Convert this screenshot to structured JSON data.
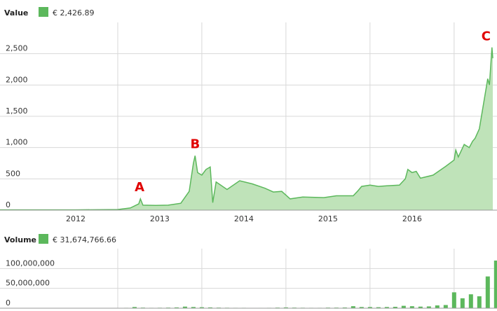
{
  "chart_data": [
    {
      "type": "area",
      "title": "Value",
      "legend_label": "€ 2,426.89",
      "color": "#5cb85c",
      "fill": "#bfe3b9",
      "x": [
        2011.6,
        2012.0,
        2012.5,
        2012.9,
        2013.0,
        2013.15,
        2013.25,
        2013.27,
        2013.3,
        2013.45,
        2013.6,
        2013.75,
        2013.85,
        2013.9,
        2013.92,
        2013.95,
        2014.0,
        2014.05,
        2014.1,
        2014.13,
        2014.17,
        2014.3,
        2014.45,
        2014.6,
        2014.75,
        2014.85,
        2014.95,
        2015.05,
        2015.2,
        2015.45,
        2015.6,
        2015.8,
        2015.85,
        2015.9,
        2016.0,
        2016.1,
        2016.2,
        2016.35,
        2016.42,
        2016.45,
        2016.5,
        2016.55,
        2016.6,
        2016.75,
        2016.9,
        2017.0,
        2017.02,
        2017.05,
        2017.12,
        2017.18,
        2017.22,
        2017.25,
        2017.3,
        2017.35,
        2017.4,
        2017.42,
        2017.45,
        2017.46
      ],
      "values": [
        4,
        5,
        5,
        9,
        10,
        35,
        100,
        180,
        80,
        75,
        80,
        110,
        300,
        750,
        870,
        600,
        560,
        650,
        690,
        120,
        450,
        330,
        470,
        420,
        350,
        290,
        300,
        180,
        210,
        200,
        230,
        230,
        300,
        380,
        400,
        380,
        390,
        400,
        500,
        650,
        600,
        620,
        510,
        560,
        700,
        800,
        960,
        850,
        1050,
        1000,
        1100,
        1150,
        1300,
        1700,
        2100,
        2000,
        2600,
        2426.89
      ],
      "xlim": [
        2011.6,
        2017.51
      ],
      "ylim": [
        0,
        3000
      ],
      "xticks": [
        {
          "value": 2012.5,
          "label": "2012"
        },
        {
          "value": 2013.5,
          "label": "2013"
        },
        {
          "value": 2014.5,
          "label": "2014"
        },
        {
          "value": 2015.5,
          "label": "2015"
        },
        {
          "value": 2016.5,
          "label": "2016"
        }
      ],
      "xgrid": [
        2013,
        2014,
        2015,
        2016,
        2017
      ],
      "yticks": [
        0,
        500,
        {
          "value": 1000,
          "label": "1,000"
        },
        {
          "value": 1500,
          "label": "1,500"
        },
        {
          "value": 2000,
          "label": "2,000"
        },
        {
          "value": 2500,
          "label": "2,500"
        }
      ],
      "annotations": [
        {
          "text": "A",
          "x": 2013.26,
          "y": 190
        },
        {
          "text": "B",
          "x": 2013.92,
          "y": 880
        },
        {
          "text": "C",
          "x": 2017.38,
          "y": 2600
        }
      ],
      "annotation_color": "#e00000"
    },
    {
      "type": "bar",
      "title": "Volume",
      "legend_label": "€ 31,674,766.66",
      "color": "#5cb85c",
      "x": [
        2011.6,
        2011.7,
        2011.8,
        2011.9,
        2012.0,
        2012.1,
        2012.2,
        2012.3,
        2012.4,
        2012.5,
        2012.6,
        2012.7,
        2012.8,
        2012.9,
        2013.0,
        2013.1,
        2013.2,
        2013.3,
        2013.4,
        2013.5,
        2013.6,
        2013.7,
        2013.8,
        2013.9,
        2014.0,
        2014.1,
        2014.2,
        2014.3,
        2014.4,
        2014.5,
        2014.6,
        2014.7,
        2014.8,
        2014.9,
        2015.0,
        2015.1,
        2015.2,
        2015.3,
        2015.4,
        2015.5,
        2015.6,
        2015.7,
        2015.8,
        2015.9,
        2016.0,
        2016.1,
        2016.2,
        2016.3,
        2016.4,
        2016.5,
        2016.6,
        2016.7,
        2016.8,
        2016.9,
        2017.0,
        2017.1,
        2017.2,
        2017.3,
        2017.4,
        2017.5
      ],
      "values": [
        200000,
        200000,
        200000,
        200000,
        200000,
        200000,
        200000,
        200000,
        200000,
        200000,
        200000,
        200000,
        200000,
        200000,
        500000,
        1000000,
        3000000,
        1500000,
        1000000,
        1200000,
        1500000,
        2000000,
        4000000,
        3000000,
        2500000,
        2000000,
        1500000,
        1200000,
        1000000,
        1000000,
        800000,
        900000,
        1000000,
        1500000,
        2000000,
        1500000,
        1200000,
        1000000,
        1000000,
        1500000,
        1500000,
        1800000,
        5000000,
        3000000,
        3000000,
        2500000,
        3000000,
        3500000,
        6000000,
        5000000,
        4000000,
        4500000,
        7000000,
        8000000,
        40000000,
        25000000,
        35000000,
        30000000,
        80000000,
        120000000
      ],
      "xlim": [
        2011.6,
        2017.51
      ],
      "ylim": [
        0,
        150000000
      ],
      "xgrid": [
        2013,
        2014,
        2015,
        2016,
        2017
      ],
      "yticks": [
        0,
        {
          "value": 50000000,
          "label": "50,000,000"
        },
        {
          "value": 100000000,
          "label": "100,000,000"
        }
      ]
    }
  ]
}
